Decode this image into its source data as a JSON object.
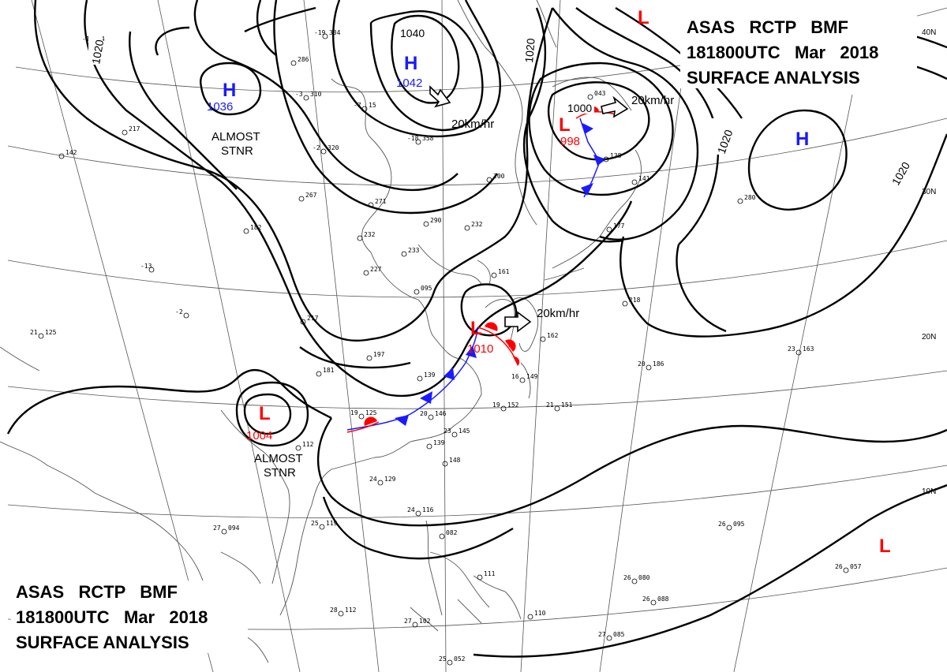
{
  "header_top": {
    "line1": "ASAS   RCTP   BMF",
    "line2": "181800UTC   Mar   2018",
    "line3": "SURFACE ANALYSIS"
  },
  "header_bottom": {
    "line1": "ASAS   RCTP   BMF",
    "line2": "181800UTC   Mar   2018",
    "line3": "SURFACE ANALYSIS"
  },
  "latitude_labels": [
    "40N",
    "30N",
    "20N",
    "10N"
  ],
  "isobar_labels": [
    "1020",
    "1040",
    "1020",
    "1020",
    "1020"
  ],
  "pressure_systems": [
    {
      "type": "H",
      "value": "1036",
      "color": "#1a1aff"
    },
    {
      "type": "H",
      "value": "1042",
      "color": "#1a1aff"
    },
    {
      "type": "H",
      "value": "",
      "color": "#1a1aff"
    },
    {
      "type": "L",
      "value": "",
      "color": "#ff0000"
    },
    {
      "type": "L",
      "value": "998",
      "color": "#ff0000"
    },
    {
      "type": "L",
      "value": "1010",
      "color": "#ff0000"
    },
    {
      "type": "L",
      "value": "1004",
      "color": "#ff0000"
    },
    {
      "type": "L",
      "value": "",
      "color": "#ff0000"
    }
  ],
  "low_isobar_label": "1000",
  "annotations": {
    "almost_stnr_1": [
      "ALMOST",
      "STNR"
    ],
    "almost_stnr_2": [
      "ALMOST",
      "STNR"
    ],
    "motion_1": "20km/hr",
    "motion_2": "20km/hr",
    "motion_3": "20km/hr"
  },
  "stations": [
    {
      "t": "-1",
      "p": "94"
    },
    {
      "t": "-19",
      "p": "334"
    },
    {
      "t": "",
      "p": "286"
    },
    {
      "t": "-7",
      "p": "15"
    },
    {
      "t": "-3",
      "p": "310"
    },
    {
      "t": "-2",
      "p": "320"
    },
    {
      "t": "-18",
      "p": "358"
    },
    {
      "t": "",
      "p": "217"
    },
    {
      "t": "",
      "p": "142"
    },
    {
      "t": "",
      "p": "267"
    },
    {
      "t": "",
      "p": "271"
    },
    {
      "t": "",
      "p": "290"
    },
    {
      "t": "",
      "p": "232"
    },
    {
      "t": "",
      "p": "232"
    },
    {
      "t": "",
      "p": "233"
    },
    {
      "t": "",
      "p": "200"
    },
    {
      "t": "",
      "p": "182"
    },
    {
      "t": "-13",
      "p": ""
    },
    {
      "t": "",
      "p": "227"
    },
    {
      "t": "",
      "p": "161"
    },
    {
      "t": "",
      "p": "095"
    },
    {
      "t": "",
      "p": "217"
    },
    {
      "t": "21",
      "p": "125"
    },
    {
      "t": "-2",
      "p": ""
    },
    {
      "t": "",
      "p": "197"
    },
    {
      "t": "",
      "p": "181"
    },
    {
      "t": "",
      "p": "139"
    },
    {
      "t": "19",
      "p": "125"
    },
    {
      "t": "20",
      "p": "146"
    },
    {
      "t": "23",
      "p": "145"
    },
    {
      "t": "",
      "p": "139"
    },
    {
      "t": "",
      "p": "148"
    },
    {
      "t": "",
      "p": "112"
    },
    {
      "t": "24",
      "p": "129"
    },
    {
      "t": "27",
      "p": "094"
    },
    {
      "t": "25",
      "p": "119"
    },
    {
      "t": "24",
      "p": "116"
    },
    {
      "t": "",
      "p": "082"
    },
    {
      "t": "",
      "p": "111"
    },
    {
      "t": "28",
      "p": "112"
    },
    {
      "t": "27",
      "p": "102"
    },
    {
      "t": "",
      "p": "110"
    },
    {
      "t": "25",
      "p": "052"
    },
    {
      "t": "",
      "p": "162"
    },
    {
      "t": "16",
      "p": "149"
    },
    {
      "t": "19",
      "p": "152"
    },
    {
      "t": "21",
      "p": "151"
    },
    {
      "t": "20",
      "p": "186"
    },
    {
      "t": "23",
      "p": "163"
    },
    {
      "t": "",
      "p": "218"
    },
    {
      "t": "",
      "p": "138"
    },
    {
      "t": "",
      "p": "141"
    },
    {
      "t": "",
      "p": "177"
    },
    {
      "t": "",
      "p": "280"
    },
    {
      "t": "26",
      "p": "080"
    },
    {
      "t": "26",
      "p": "088"
    },
    {
      "t": "27",
      "p": "085"
    },
    {
      "t": "26",
      "p": "095"
    },
    {
      "t": "26",
      "p": "057"
    },
    {
      "t": "",
      "p": "043"
    }
  ],
  "colors": {
    "high": "#1a1aff",
    "low": "#ff0000",
    "cold_front": "#1a1aff",
    "warm_front": "#ff0000",
    "isobar": "#000000",
    "coast": "#555555",
    "grid": "#555555"
  }
}
